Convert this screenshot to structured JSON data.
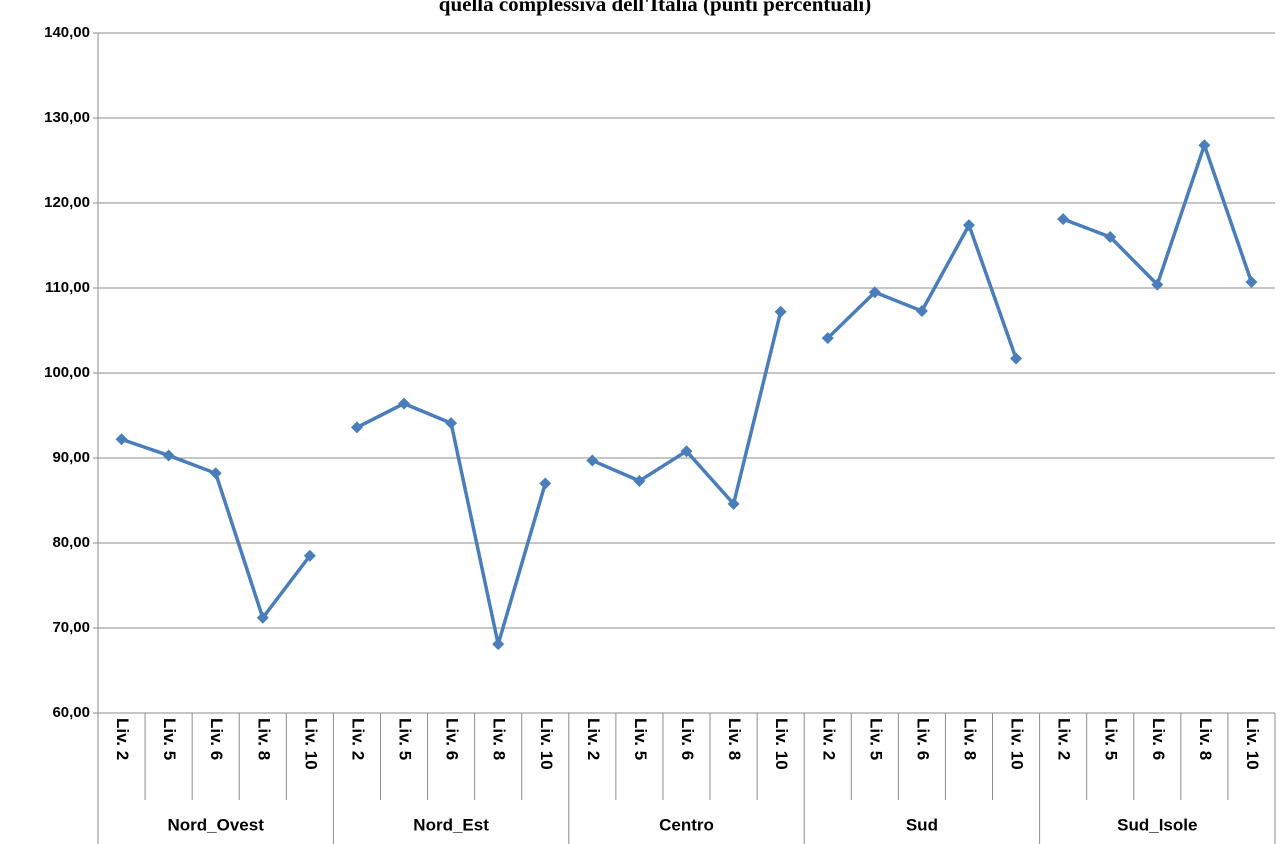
{
  "chart_data": {
    "type": "line",
    "title": "quella complessiva dell'Italia  (punti percentuali)",
    "categories": [
      "Liv. 2",
      "Liv. 5",
      "Liv. 6",
      "Liv. 8",
      "Liv. 10",
      "Liv. 2",
      "Liv. 5",
      "Liv. 6",
      "Liv. 8",
      "Liv. 10",
      "Liv. 2",
      "Liv. 5",
      "Liv. 6",
      "Liv. 8",
      "Liv. 10",
      "Liv. 2",
      "Liv. 5",
      "Liv. 6",
      "Liv. 8",
      "Liv. 10",
      "Liv. 2",
      "Liv. 5",
      "Liv. 6",
      "Liv. 8",
      "Liv. 10"
    ],
    "groups": [
      "Nord_Ovest",
      "Nord_Est",
      "Centro",
      "Sud",
      "Sud_Isole"
    ],
    "values": [
      92.2,
      90.3,
      88.2,
      71.2,
      78.5,
      93.6,
      96.4,
      94.1,
      68.1,
      87.0,
      89.7,
      87.3,
      90.8,
      84.6,
      107.2,
      104.1,
      109.5,
      107.3,
      117.4,
      101.7,
      118.1,
      116.0,
      110.4,
      126.8,
      110.7
    ],
    "color": "#4a7ebb",
    "ylim": [
      60,
      140
    ],
    "yticks": [
      {
        "value": 60,
        "label": "60,00"
      },
      {
        "value": 70,
        "label": "70,00"
      },
      {
        "value": 80,
        "label": "80,00"
      },
      {
        "value": 90,
        "label": "90,00"
      },
      {
        "value": 100,
        "label": "100,00"
      },
      {
        "value": 110,
        "label": "110,00"
      },
      {
        "value": 120,
        "label": "120,00"
      },
      {
        "value": 130,
        "label": "130,00"
      },
      {
        "value": 140,
        "label": "140,00"
      }
    ],
    "grid": true
  }
}
